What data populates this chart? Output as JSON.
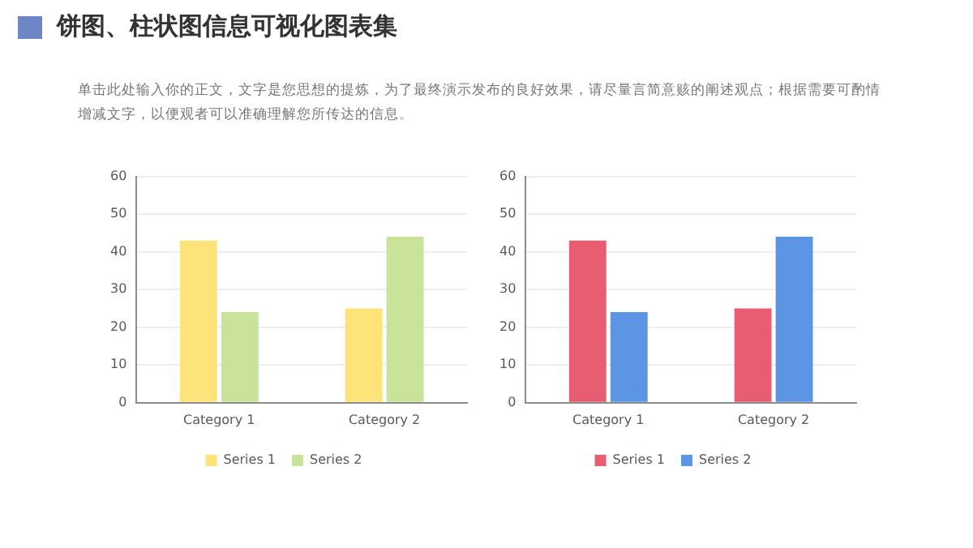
{
  "chart_data": [
    {
      "type": "bar",
      "title": "饼图、柱状图信息可视化图表集",
      "subtitle": "单击此处输入你的正文，文字是您思想的提炼，为了最终演示发布的良好效果，请尽量言简意赅的阐述观点；根据需要可酌情增减文字，以便观者可以准确理解您所传达的信息。",
      "categories": [
        "Category 1",
        "Category 2"
      ],
      "series": [
        {
          "name": "Series 1",
          "color": "#fee27a",
          "values": [
            43,
            25
          ]
        },
        {
          "name": "Series 2",
          "color": "#c9e49a",
          "values": [
            24,
            44
          ]
        }
      ],
      "ylim": [
        0,
        60
      ],
      "yticks": [
        0,
        10,
        20,
        30,
        40,
        50,
        60
      ],
      "grid": "y",
      "legend": "bottom"
    },
    {
      "type": "bar",
      "categories": [
        "Category 1",
        "Category 2"
      ],
      "series": [
        {
          "name": "Series 1",
          "color": "#e95d72",
          "values": [
            43,
            25
          ]
        },
        {
          "name": "Series 2",
          "color": "#5b95e4",
          "values": [
            24,
            44
          ]
        }
      ],
      "ylim": [
        0,
        60
      ],
      "yticks": [
        0,
        10,
        20,
        30,
        40,
        50,
        60
      ],
      "grid": "y",
      "legend": "bottom"
    }
  ]
}
